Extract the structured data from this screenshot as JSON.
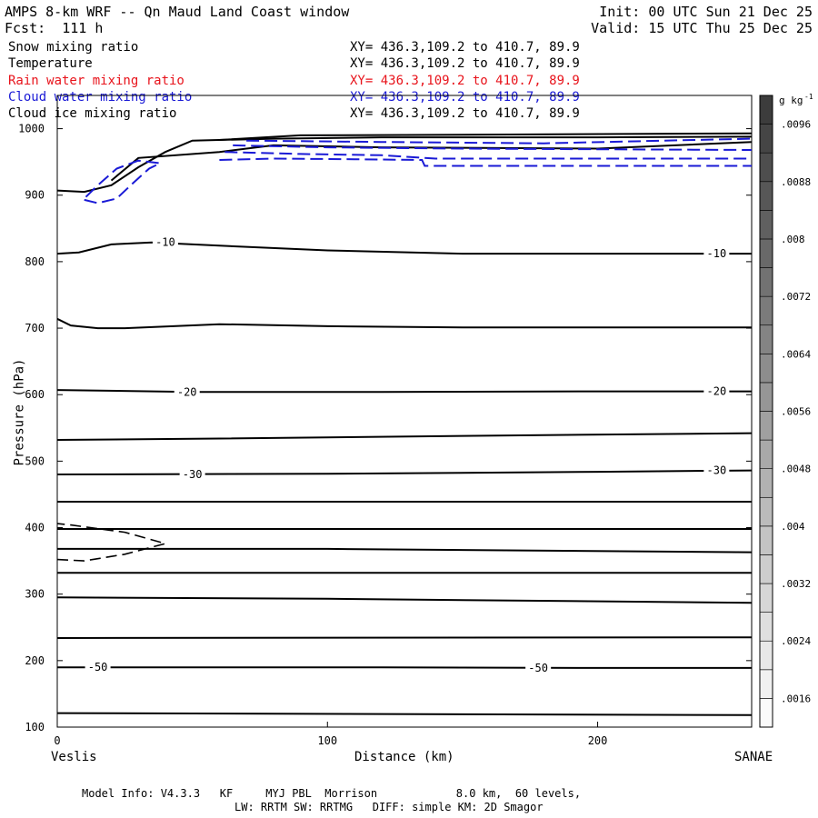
{
  "header": {
    "title": "AMPS 8-km WRF -- Qn Maud Land Coast window",
    "forecast": "Fcst:  111 h",
    "init": "Init: 00 UTC Sun 21 Dec 25",
    "valid": "Valid: 15 UTC Thu 25 Dec 25"
  },
  "fields": [
    {
      "name": "Snow mixing ratio",
      "xy": "XY= 436.3,109.2 to 410.7, 89.9",
      "color": "#000000"
    },
    {
      "name": "Temperature",
      "xy": "XY= 436.3,109.2 to 410.7, 89.9",
      "color": "#000000"
    },
    {
      "name": "Rain water mixing ratio",
      "xy": "XY= 436.3,109.2 to 410.7, 89.9",
      "color": "#e8141c"
    },
    {
      "name": "Cloud water mixing ratio",
      "xy": "XY= 436.3,109.2 to 410.7, 89.9",
      "color": "#1a1ad6"
    },
    {
      "name": "Cloud ice mixing ratio",
      "xy": "XY= 436.3,109.2 to 410.7, 89.9",
      "color": "#000000"
    }
  ],
  "footer": {
    "line1": "Model Info: V4.3.3   KF     MYJ PBL  Morrison            8.0 km,  60 levels,",
    "line2": "LW: RRTM SW: RRTMG   DIFF: simple KM: 2D Smagor"
  },
  "chart_data": {
    "type": "contour",
    "xlabel": "Distance (km)",
    "ylabel": "Pressure (hPa)",
    "xlim": [
      0,
      257
    ],
    "ylim": [
      1050,
      100
    ],
    "x_ticks": [
      "0",
      "100",
      "200"
    ],
    "x_tick_values": [
      0,
      100,
      200
    ],
    "y_ticks": [
      "100",
      "200",
      "300",
      "400",
      "500",
      "600",
      "700",
      "800",
      "900",
      "1000"
    ],
    "y_tick_values": [
      100,
      200,
      300,
      400,
      500,
      600,
      700,
      800,
      900,
      1000
    ],
    "left_endpoint": "Veslis",
    "right_endpoint": "SANAE",
    "colorbar": {
      "units": "g kg",
      "units_exp": "-1",
      "labels": [
        ".0096",
        ".0088",
        ".008",
        ".0072",
        ".0064",
        ".0056",
        ".0048",
        ".004",
        ".0032",
        ".0024",
        ".0016"
      ],
      "label_values": [
        0.0096,
        0.0088,
        0.008,
        0.0072,
        0.0064,
        0.0056,
        0.0048,
        0.004,
        0.0032,
        0.0024,
        0.0016
      ],
      "min": 0.0012,
      "max": 0.01,
      "bands": [
        0.0012,
        0.0016,
        0.002,
        0.0024,
        0.0028,
        0.0032,
        0.0036,
        0.004,
        0.0044,
        0.0048,
        0.0052,
        0.0056,
        0.006,
        0.0064,
        0.0068,
        0.0072,
        0.0076,
        0.008,
        0.0084,
        0.0088,
        0.0092,
        0.0096,
        0.01
      ]
    },
    "temperature_contours": [
      {
        "points": [
          [
            0,
            121
          ],
          [
            257,
            118
          ]
        ]
      },
      {
        "level": -50,
        "points": [
          [
            0,
            190
          ],
          [
            50,
            190
          ],
          [
            120,
            190
          ],
          [
            200,
            189
          ],
          [
            257,
            189
          ]
        ],
        "labels": [
          {
            "x": 15,
            "p": 190,
            "text": "-50"
          },
          {
            "x": 178,
            "p": 189,
            "text": "-50"
          }
        ]
      },
      {
        "points": [
          [
            0,
            234
          ],
          [
            257,
            235
          ]
        ]
      },
      {
        "points": [
          [
            0,
            295
          ],
          [
            100,
            293
          ],
          [
            257,
            287
          ]
        ]
      },
      {
        "points": [
          [
            0,
            332
          ],
          [
            257,
            332
          ]
        ]
      },
      {
        "points": [
          [
            0,
            368
          ],
          [
            100,
            368
          ],
          [
            257,
            363
          ]
        ]
      },
      {
        "points": [
          [
            0,
            398
          ],
          [
            257,
            398
          ]
        ]
      },
      {
        "points": [
          [
            0,
            439
          ],
          [
            257,
            439
          ]
        ]
      },
      {
        "level": -30,
        "points": [
          [
            0,
            480
          ],
          [
            100,
            481
          ],
          [
            200,
            484
          ],
          [
            257,
            486
          ]
        ],
        "labels": [
          {
            "x": 50,
            "p": 480,
            "text": "-30"
          },
          {
            "x": 244,
            "p": 486,
            "text": "-30"
          }
        ]
      },
      {
        "points": [
          [
            0,
            532
          ],
          [
            60,
            534
          ],
          [
            150,
            538
          ],
          [
            257,
            542
          ]
        ]
      },
      {
        "level": -20,
        "points": [
          [
            0,
            607
          ],
          [
            50,
            604
          ],
          [
            120,
            604
          ],
          [
            200,
            605
          ],
          [
            257,
            605
          ]
        ],
        "labels": [
          {
            "x": 48,
            "p": 604,
            "text": "-20"
          },
          {
            "x": 244,
            "p": 605,
            "text": "-20"
          }
        ]
      },
      {
        "points": [
          [
            0,
            714
          ],
          [
            5,
            704
          ],
          [
            15,
            700
          ],
          [
            25,
            700
          ],
          [
            60,
            706
          ],
          [
            100,
            703
          ],
          [
            150,
            701
          ],
          [
            257,
            701
          ]
        ]
      },
      {
        "level": -10,
        "points": [
          [
            0,
            812
          ],
          [
            8,
            814
          ],
          [
            20,
            826
          ],
          [
            35,
            829
          ],
          [
            60,
            824
          ],
          [
            100,
            817
          ],
          [
            150,
            812
          ],
          [
            257,
            812
          ]
        ],
        "labels": [
          {
            "x": 40,
            "p": 829,
            "text": "-10"
          },
          {
            "x": 244,
            "p": 812,
            "text": "-10"
          }
        ]
      },
      {
        "points": [
          [
            0,
            907
          ],
          [
            10,
            905
          ],
          [
            20,
            915
          ],
          [
            30,
            942
          ],
          [
            40,
            965
          ],
          [
            50,
            982
          ],
          [
            80,
            985
          ],
          [
            120,
            987
          ],
          [
            200,
            987
          ],
          [
            257,
            988
          ]
        ]
      },
      {
        "points": [
          [
            20,
            922
          ],
          [
            30,
            956
          ],
          [
            60,
            965
          ],
          [
            80,
            975
          ],
          [
            120,
            972
          ],
          [
            200,
            970
          ],
          [
            257,
            980
          ]
        ]
      },
      {
        "points": [
          [
            60,
            983
          ],
          [
            90,
            990
          ],
          [
            150,
            991
          ],
          [
            257,
            993
          ]
        ]
      }
    ],
    "snow_contours": [
      {
        "points": [
          [
            0,
            352
          ],
          [
            10,
            350
          ],
          [
            25,
            360
          ],
          [
            40,
            376
          ],
          [
            25,
            393
          ],
          [
            5,
            404
          ],
          [
            0,
            406
          ]
        ]
      }
    ],
    "cloud_water_contours": [
      {
        "points": [
          [
            10,
            893
          ],
          [
            15,
            888
          ],
          [
            22,
            895
          ],
          [
            28,
            918
          ],
          [
            34,
            940
          ],
          [
            38,
            948
          ],
          [
            30,
            952
          ],
          [
            22,
            940
          ],
          [
            15,
            915
          ],
          [
            10,
            895
          ]
        ]
      },
      {
        "points": [
          [
            60,
            953
          ],
          [
            80,
            955
          ],
          [
            110,
            954
          ],
          [
            135,
            953
          ],
          [
            136,
            944
          ],
          [
            257,
            944
          ]
        ]
      },
      {
        "points": [
          [
            62,
            965
          ],
          [
            90,
            962
          ],
          [
            120,
            960
          ],
          [
            140,
            955
          ],
          [
            257,
            955
          ]
        ]
      },
      {
        "points": [
          [
            65,
            975
          ],
          [
            100,
            972
          ],
          [
            150,
            970
          ],
          [
            257,
            968
          ]
        ]
      },
      {
        "points": [
          [
            70,
            982
          ],
          [
            120,
            980
          ],
          [
            180,
            978
          ],
          [
            257,
            985
          ]
        ]
      }
    ]
  }
}
